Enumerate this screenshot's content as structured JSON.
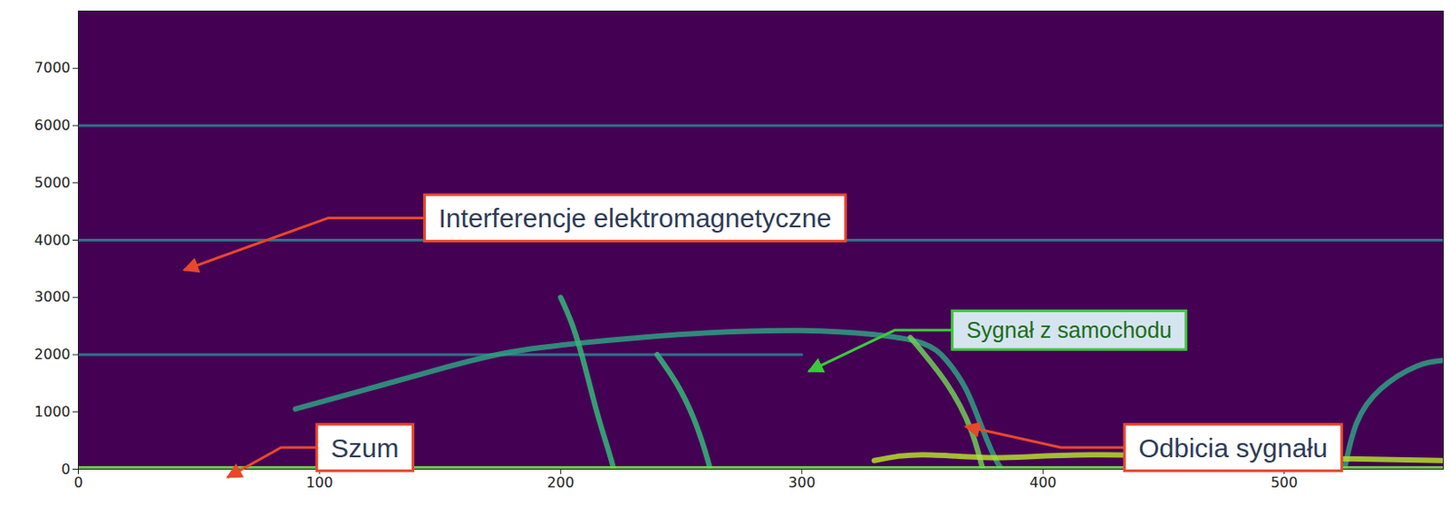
{
  "chart_data": {
    "type": "spectrogram",
    "color": "#440154",
    "xlim": [
      0,
      566
    ],
    "xticks": [
      0,
      100,
      200,
      300,
      400,
      500
    ],
    "ylim": [
      0,
      8000
    ],
    "yticks": [
      0,
      1000,
      2000,
      3000,
      4000,
      5000,
      6000,
      7000
    ],
    "series": [
      {
        "type": "line",
        "color": "#2a7f8e",
        "x": [
          0,
          566
        ],
        "values": [
          6000,
          6000
        ]
      },
      {
        "type": "line",
        "color": "#2a7f8e",
        "x": [
          0,
          566
        ],
        "values": [
          4000,
          4000
        ]
      },
      {
        "type": "line",
        "color": "#2a7f8e",
        "x": [
          0,
          300
        ],
        "values": [
          2000,
          2000
        ]
      },
      {
        "type": "line",
        "color": "#2fa083",
        "x": [
          90,
          120,
          150,
          180,
          220,
          260,
          300,
          330,
          350,
          360,
          368,
          374,
          380,
          383
        ],
        "values": [
          1050,
          1400,
          1750,
          2050,
          2250,
          2380,
          2420,
          2350,
          2200,
          1900,
          1400,
          800,
          200,
          0
        ]
      },
      {
        "type": "line",
        "color": "#35b779",
        "x": [
          200,
          205,
          210,
          215,
          220,
          222
        ],
        "values": [
          3000,
          2500,
          1800,
          1000,
          300,
          0
        ]
      },
      {
        "type": "line",
        "color": "#35b779",
        "x": [
          240,
          248,
          255,
          260,
          262
        ],
        "values": [
          2000,
          1500,
          900,
          300,
          0
        ]
      },
      {
        "type": "line",
        "color": "#6ece58",
        "x": [
          345,
          360,
          370,
          375
        ],
        "values": [
          2300,
          1500,
          700,
          0
        ]
      },
      {
        "type": "line",
        "color": "#2fa083",
        "x": [
          525,
          530,
          540,
          555,
          566
        ],
        "values": [
          0,
          800,
          1400,
          1800,
          1900
        ]
      },
      {
        "type": "line",
        "color": "#b5de2b",
        "x": [
          330,
          350,
          380,
          420,
          500,
          566
        ],
        "values": [
          150,
          250,
          200,
          250,
          200,
          150
        ]
      },
      {
        "type": "line",
        "color": "#7ad151",
        "x": [
          0,
          566
        ],
        "values": [
          30,
          30
        ]
      }
    ],
    "annotations": [
      {
        "text": "Interferencje elektromagnetyczne",
        "x": 231,
        "y": 4380,
        "arrow_x": 44,
        "arrow_y": 3470,
        "color": "#e8472a"
      },
      {
        "text": "Sygnał z samochodu",
        "x": 411,
        "y": 2420,
        "arrow_x": 303,
        "arrow_y": 1700,
        "color": "#3cc83c"
      },
      {
        "text": "Szum",
        "x": 119,
        "y": 370,
        "arrow_x": 62,
        "arrow_y": -150,
        "color": "#e8472a"
      },
      {
        "text": "Odbicia sygnału",
        "x": 479,
        "y": 370,
        "arrow_x": 368,
        "arrow_y": 740,
        "color": "#e8472a"
      }
    ]
  }
}
